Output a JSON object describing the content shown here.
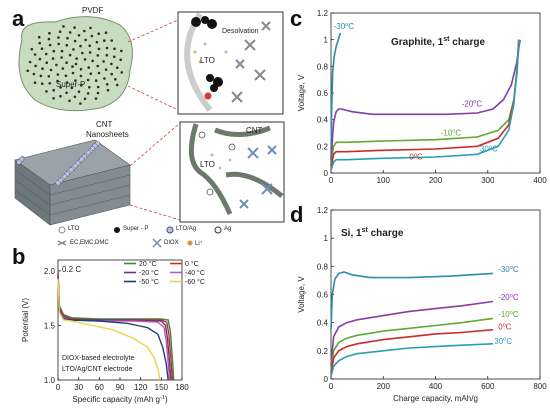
{
  "panel_letters": {
    "a": "a",
    "b": "b",
    "c": "c",
    "d": "d"
  },
  "panel_a": {
    "labels": {
      "pvdf": "PVDF",
      "superp": "Super-P",
      "desolvation": "Desolvation",
      "lto_top": "LTO",
      "cnt_left": "CNT",
      "nanosheets": "Nanosheets",
      "cnt_right": "CNT",
      "lto_bottom": "LTO"
    },
    "legend": {
      "lto": "LTO",
      "superp": "Super - P",
      "lto_ag": "LTO/Ag",
      "ag": "Ag",
      "ec": "EC,EMC,DMC",
      "diox": "DIOX",
      "li": "Li⁺"
    }
  },
  "colors": {
    "curve_green": "#5fa832",
    "curve_purple": "#8a3aa8",
    "curve_red": "#cc2a2a",
    "curve_blue": "#2d8bb0",
    "curve_teal": "#28a0b4",
    "b_yellow": "#e8d44d",
    "b_blue": "#1f3f7a",
    "b_pink": "#c65aa0",
    "cnt_dark": "#6b7a6b"
  },
  "chart_data": [
    {
      "id": "c",
      "type": "line",
      "title": "Graphite, 1",
      "title_sup": "st",
      "title_tail": " charge",
      "ylabel": "Voltage, V",
      "xlabel": "",
      "xlim": [
        0,
        400
      ],
      "ylim": [
        0,
        1.2
      ],
      "xticks": [
        0,
        100,
        200,
        300,
        400
      ],
      "yticks": [
        0,
        0.2,
        0.4,
        0.6,
        0.8,
        1,
        1.2
      ],
      "series": [
        {
          "name": "-30°C",
          "color": "#2d8bb0",
          "x": [
            0,
            1,
            3,
            6,
            10,
            14,
            18
          ],
          "y": [
            0.05,
            0.42,
            0.75,
            0.87,
            0.95,
            1.0,
            1.05
          ]
        },
        {
          "name": "-20°C",
          "color": "#8a3aa8",
          "x": [
            0,
            5,
            10,
            15,
            20,
            40,
            80,
            150,
            220,
            280,
            310,
            330,
            345,
            355,
            362
          ],
          "y": [
            0.1,
            0.38,
            0.46,
            0.48,
            0.48,
            0.46,
            0.44,
            0.44,
            0.44,
            0.45,
            0.48,
            0.55,
            0.66,
            0.82,
            1.0
          ]
        },
        {
          "name": "-10°C",
          "color": "#5fa832",
          "x": [
            0,
            5,
            10,
            30,
            100,
            200,
            280,
            320,
            340,
            350,
            356,
            360
          ],
          "y": [
            0.05,
            0.2,
            0.23,
            0.23,
            0.24,
            0.25,
            0.27,
            0.32,
            0.4,
            0.55,
            0.75,
            1.0
          ]
        },
        {
          "name": "0°C",
          "color": "#cc2a2a",
          "x": [
            0,
            5,
            10,
            30,
            100,
            200,
            280,
            320,
            340,
            350,
            356,
            359
          ],
          "y": [
            0.03,
            0.14,
            0.16,
            0.16,
            0.17,
            0.18,
            0.2,
            0.26,
            0.36,
            0.55,
            0.78,
            1.0
          ]
        },
        {
          "name": "30°C",
          "color": "#28a0b4",
          "x": [
            0,
            5,
            10,
            30,
            100,
            200,
            280,
            320,
            340,
            350,
            356,
            360
          ],
          "y": [
            0.02,
            0.08,
            0.1,
            0.1,
            0.11,
            0.12,
            0.14,
            0.2,
            0.32,
            0.52,
            0.78,
            1.0
          ]
        }
      ],
      "annotations": [
        {
          "text": "-30",
          "sup": "o",
          "tail": "C",
          "color": "#2d8bb0",
          "x": 5,
          "y": 1.08
        },
        {
          "text": "-20",
          "sup": "o",
          "tail": "C",
          "color": "#8a3aa8",
          "x": 250,
          "y": 0.5
        },
        {
          "text": "-10",
          "sup": "o",
          "tail": "C",
          "color": "#5fa832",
          "x": 210,
          "y": 0.28
        },
        {
          "text": "0",
          "sup": "o",
          "tail": "C",
          "color": "#cc2a2a",
          "x": 150,
          "y": 0.1
        },
        {
          "text": "30",
          "sup": "o",
          "tail": "C",
          "color": "#28a0b4",
          "x": 285,
          "y": 0.16
        }
      ]
    },
    {
      "id": "d",
      "type": "line",
      "title": "Si, 1",
      "title_sup": "st",
      "title_tail": " charge",
      "ylabel": "Voltage, V",
      "xlabel": "Charge capacity, mAh/g",
      "xlim": [
        0,
        800
      ],
      "ylim": [
        0,
        1.2
      ],
      "xticks": [
        0,
        200,
        400,
        600,
        800
      ],
      "yticks": [
        0,
        0.2,
        0.4,
        0.6,
        0.8,
        1,
        1.2
      ],
      "series": [
        {
          "name": "-30°C",
          "color": "#2d8bb0",
          "x": [
            0,
            5,
            15,
            30,
            50,
            80,
            150,
            300,
            450,
            620
          ],
          "y": [
            0.35,
            0.6,
            0.71,
            0.75,
            0.76,
            0.74,
            0.72,
            0.72,
            0.73,
            0.75
          ]
        },
        {
          "name": "-20°C",
          "color": "#8a3aa8",
          "x": [
            0,
            10,
            30,
            60,
            100,
            200,
            300,
            400,
            500,
            620
          ],
          "y": [
            0.1,
            0.3,
            0.37,
            0.4,
            0.42,
            0.45,
            0.48,
            0.5,
            0.52,
            0.55
          ]
        },
        {
          "name": "-10°C",
          "color": "#5fa832",
          "x": [
            0,
            10,
            30,
            60,
            100,
            200,
            300,
            400,
            500,
            620
          ],
          "y": [
            0.05,
            0.2,
            0.26,
            0.29,
            0.31,
            0.34,
            0.36,
            0.38,
            0.4,
            0.43
          ]
        },
        {
          "name": "0°C",
          "color": "#cc2a2a",
          "x": [
            0,
            10,
            30,
            60,
            100,
            200,
            300,
            400,
            500,
            620
          ],
          "y": [
            0.03,
            0.15,
            0.2,
            0.23,
            0.25,
            0.28,
            0.3,
            0.32,
            0.33,
            0.35
          ]
        },
        {
          "name": "30°C",
          "color": "#28a0b4",
          "x": [
            0,
            10,
            30,
            60,
            100,
            200,
            300,
            400,
            500,
            620
          ],
          "y": [
            0.02,
            0.09,
            0.13,
            0.16,
            0.18,
            0.2,
            0.22,
            0.23,
            0.24,
            0.25
          ]
        }
      ],
      "annotations": [
        {
          "text": "-30",
          "sup": "o",
          "tail": "C",
          "color": "#2d8bb0",
          "x": 640,
          "y": 0.76
        },
        {
          "text": "-20",
          "sup": "o",
          "tail": "C",
          "color": "#8a3aa8",
          "x": 640,
          "y": 0.56
        },
        {
          "text": "-10",
          "sup": "o",
          "tail": "C",
          "color": "#5fa832",
          "x": 640,
          "y": 0.44
        },
        {
          "text": "0",
          "sup": "o",
          "tail": "C",
          "color": "#cc2a2a",
          "x": 640,
          "y": 0.35
        },
        {
          "text": "30",
          "sup": "o",
          "tail": "C",
          "color": "#28a0b4",
          "x": 625,
          "y": 0.25
        }
      ]
    },
    {
      "id": "b",
      "type": "line",
      "title": "",
      "rate_label": "0.2 C",
      "ylabel": "Potential (V)",
      "xlabel": "Specific capacity (mAh g",
      "xlabel_sup": "-1",
      "xlabel_tail": ")",
      "xlim": [
        0,
        180
      ],
      "ylim": [
        1.0,
        2.1
      ],
      "xticks": [
        0,
        30,
        60,
        90,
        120,
        150,
        180
      ],
      "yticks": [
        1.0,
        1.5,
        2.0
      ],
      "notes": [
        "DIOX-based electrolyte",
        "LTO/Ag/CNT electrode"
      ],
      "series": [
        {
          "name": "20 °C",
          "color": "#3a8a3a",
          "x": [
            0,
            2,
            8,
            20,
            60,
            110,
            150,
            160,
            163,
            166,
            168
          ],
          "y": [
            2.0,
            1.68,
            1.6,
            1.57,
            1.56,
            1.56,
            1.56,
            1.55,
            1.45,
            1.2,
            1.0
          ]
        },
        {
          "name": "0 °C",
          "color": "#d02a2a",
          "x": [
            0,
            2,
            8,
            20,
            60,
            110,
            150,
            158,
            161,
            164,
            166
          ],
          "y": [
            1.98,
            1.66,
            1.59,
            1.56,
            1.55,
            1.55,
            1.55,
            1.53,
            1.42,
            1.18,
            1.0
          ]
        },
        {
          "name": "-20 °C",
          "color": "#5b3a8a",
          "x": [
            0,
            2,
            8,
            20,
            60,
            110,
            150,
            156,
            159,
            162,
            164
          ],
          "y": [
            1.97,
            1.65,
            1.58,
            1.55,
            1.55,
            1.55,
            1.54,
            1.5,
            1.38,
            1.15,
            1.0
          ]
        },
        {
          "name": "-40 °C",
          "color": "#c65aa0",
          "x": [
            0,
            2,
            8,
            20,
            60,
            110,
            145,
            154,
            157,
            160,
            162
          ],
          "y": [
            1.96,
            1.64,
            1.57,
            1.55,
            1.54,
            1.54,
            1.53,
            1.48,
            1.36,
            1.15,
            1.0
          ]
        },
        {
          "name": "-50 °C",
          "color": "#1f3f7a",
          "x": [
            0,
            2,
            8,
            20,
            60,
            100,
            130,
            145,
            152,
            157,
            160
          ],
          "y": [
            1.95,
            1.63,
            1.56,
            1.55,
            1.54,
            1.52,
            1.48,
            1.42,
            1.3,
            1.15,
            1.0
          ]
        },
        {
          "name": "-60 °C",
          "color": "#e8d44d",
          "x": [
            0,
            2,
            8,
            20,
            50,
            80,
            110,
            130,
            140,
            145,
            148
          ],
          "y": [
            1.93,
            1.62,
            1.55,
            1.54,
            1.5,
            1.46,
            1.38,
            1.3,
            1.2,
            1.1,
            1.0
          ]
        }
      ],
      "legend_layout": "2 columns, top-right"
    }
  ]
}
